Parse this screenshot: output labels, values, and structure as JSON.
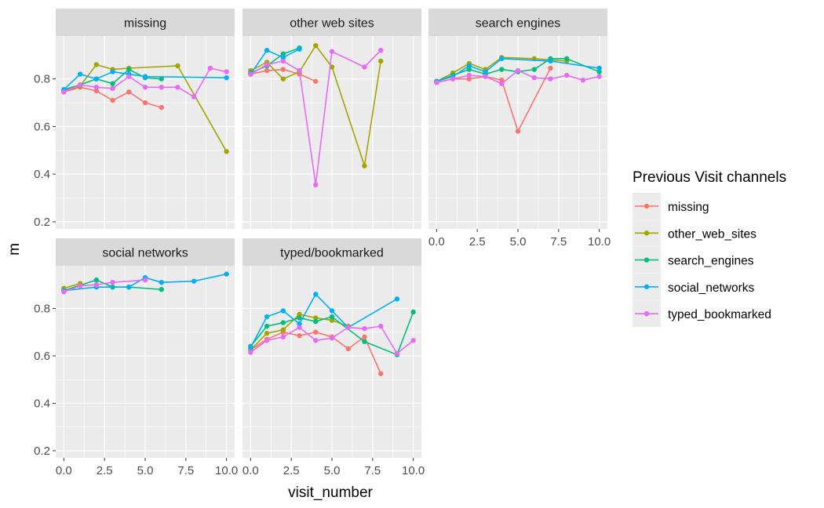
{
  "chart_data": {
    "type": "line",
    "xlabel": "visit_number",
    "ylabel": "m",
    "xlim": [
      -0.5,
      10.5
    ],
    "ylim": [
      0.17,
      0.98
    ],
    "x_ticks": [
      0,
      2.5,
      5,
      7.5,
      10
    ],
    "x_tick_labels": [
      "0.0",
      "2.5",
      "5.0",
      "7.5",
      "10.0"
    ],
    "y_ticks": [
      0.2,
      0.4,
      0.6,
      0.8
    ],
    "y_tick_labels": [
      "0.2",
      "0.4",
      "0.6",
      "0.8"
    ],
    "grid": true,
    "legend": {
      "title": "Previous Visit channels",
      "position": "right",
      "entries": [
        {
          "label": "missing",
          "color": "#F8766D"
        },
        {
          "label": "other_web_sites",
          "color": "#A3A500"
        },
        {
          "label": "search_engines",
          "color": "#00BF7D"
        },
        {
          "label": "social_networks",
          "color": "#00B0F6"
        },
        {
          "label": "typed_bookmarked",
          "color": "#E76BF3"
        }
      ]
    },
    "panels": [
      {
        "title": "missing",
        "series": [
          {
            "name": "missing",
            "x": [
              0,
              1,
              2,
              3,
              4,
              5,
              6
            ],
            "y": [
              0.745,
              0.765,
              0.75,
              0.71,
              0.745,
              0.7,
              0.68
            ]
          },
          {
            "name": "other_web_sites",
            "x": [
              0,
              1,
              2,
              3,
              4,
              7,
              10
            ],
            "y": [
              0.75,
              0.77,
              0.86,
              0.84,
              0.845,
              0.855,
              0.495
            ]
          },
          {
            "name": "search_engines",
            "x": [
              0,
              1,
              2,
              3,
              4,
              5,
              6
            ],
            "y": [
              0.755,
              0.775,
              0.8,
              0.78,
              0.84,
              0.805,
              0.8
            ]
          },
          {
            "name": "social_networks",
            "x": [
              0,
              1,
              2,
              3,
              4,
              5,
              10
            ],
            "y": [
              0.755,
              0.82,
              0.8,
              0.83,
              0.82,
              0.81,
              0.805
            ]
          },
          {
            "name": "typed_bookmarked",
            "x": [
              0,
              1,
              2,
              3,
              4,
              5,
              6,
              7,
              8,
              9,
              10
            ],
            "y": [
              0.745,
              0.775,
              0.765,
              0.76,
              0.81,
              0.765,
              0.765,
              0.765,
              0.725,
              0.845,
              0.83
            ]
          }
        ]
      },
      {
        "title": "other web sites",
        "series": [
          {
            "name": "missing",
            "x": [
              0,
              1,
              2,
              3,
              4
            ],
            "y": [
              0.82,
              0.835,
              0.84,
              0.82,
              0.79
            ]
          },
          {
            "name": "other_web_sites",
            "x": [
              0,
              1,
              2,
              3,
              4,
              5,
              7,
              8
            ],
            "y": [
              0.835,
              0.87,
              0.8,
              0.83,
              0.94,
              0.85,
              0.435,
              0.875
            ]
          },
          {
            "name": "search_engines",
            "x": [
              0,
              1,
              2,
              3
            ],
            "y": [
              0.825,
              0.855,
              0.905,
              0.93
            ]
          },
          {
            "name": "social_networks",
            "x": [
              0,
              1,
              2,
              3
            ],
            "y": [
              0.82,
              0.92,
              0.89,
              0.925
            ]
          },
          {
            "name": "typed_bookmarked",
            "x": [
              0,
              1,
              2,
              3,
              4,
              5,
              7,
              8
            ],
            "y": [
              0.82,
              0.86,
              0.875,
              0.835,
              0.355,
              0.915,
              0.85,
              0.92
            ]
          }
        ]
      },
      {
        "title": "search engines",
        "series": [
          {
            "name": "missing",
            "x": [
              0,
              1,
              2,
              3,
              4,
              5,
              7
            ],
            "y": [
              0.785,
              0.8,
              0.8,
              0.81,
              0.795,
              0.58,
              0.845
            ]
          },
          {
            "name": "other_web_sites",
            "x": [
              0,
              1,
              2,
              3,
              4,
              6,
              8
            ],
            "y": [
              0.79,
              0.825,
              0.865,
              0.84,
              0.89,
              0.885,
              0.875
            ]
          },
          {
            "name": "search_engines",
            "x": [
              0,
              1,
              2,
              3,
              4,
              5,
              6,
              7,
              8,
              10
            ],
            "y": [
              0.79,
              0.815,
              0.84,
              0.82,
              0.84,
              0.83,
              0.84,
              0.885,
              0.885,
              0.83
            ]
          },
          {
            "name": "social_networks",
            "x": [
              0,
              1,
              2,
              3,
              4,
              7,
              10
            ],
            "y": [
              0.79,
              0.81,
              0.855,
              0.83,
              0.885,
              0.875,
              0.845
            ]
          },
          {
            "name": "typed_bookmarked",
            "x": [
              0,
              1,
              2,
              3,
              4,
              5,
              6,
              7,
              8,
              9,
              10
            ],
            "y": [
              0.785,
              0.8,
              0.815,
              0.81,
              0.78,
              0.835,
              0.805,
              0.8,
              0.815,
              0.795,
              0.81
            ]
          }
        ]
      },
      {
        "title": "social networks",
        "series": [
          {
            "name": "other_web_sites",
            "x": [
              0,
              1
            ],
            "y": [
              0.885,
              0.905
            ]
          },
          {
            "name": "search_engines",
            "x": [
              0,
              2,
              3,
              4,
              6
            ],
            "y": [
              0.875,
              0.92,
              0.89,
              0.89,
              0.88
            ]
          },
          {
            "name": "social_networks",
            "x": [
              0,
              2,
              4,
              5,
              6,
              8,
              10
            ],
            "y": [
              0.875,
              0.89,
              0.89,
              0.93,
              0.91,
              0.915,
              0.945
            ]
          },
          {
            "name": "typed_bookmarked",
            "x": [
              0,
              1,
              2,
              3,
              5
            ],
            "y": [
              0.87,
              0.895,
              0.9,
              0.91,
              0.92
            ]
          }
        ]
      },
      {
        "title": "typed/bookmarked",
        "series": [
          {
            "name": "missing",
            "x": [
              0,
              1,
              2,
              3,
              4,
              5,
              6,
              7,
              8
            ],
            "y": [
              0.625,
              0.67,
              0.7,
              0.685,
              0.7,
              0.68,
              0.63,
              0.68,
              0.525
            ]
          },
          {
            "name": "other_web_sites",
            "x": [
              0,
              1,
              2,
              3,
              4,
              5,
              6
            ],
            "y": [
              0.625,
              0.695,
              0.71,
              0.775,
              0.76,
              0.75,
              0.725
            ]
          },
          {
            "name": "search_engines",
            "x": [
              0,
              1,
              2,
              3,
              4,
              5,
              7,
              9,
              10
            ],
            "y": [
              0.64,
              0.725,
              0.74,
              0.76,
              0.745,
              0.765,
              0.66,
              0.605,
              0.785
            ]
          },
          {
            "name": "social_networks",
            "x": [
              0,
              1,
              2,
              3,
              4,
              5,
              6,
              9
            ],
            "y": [
              0.635,
              0.765,
              0.79,
              0.735,
              0.86,
              0.79,
              0.72,
              0.84
            ]
          },
          {
            "name": "typed_bookmarked",
            "x": [
              0,
              1,
              2,
              3,
              4,
              5,
              6,
              7,
              8,
              9,
              10
            ],
            "y": [
              0.615,
              0.665,
              0.68,
              0.72,
              0.665,
              0.675,
              0.72,
              0.715,
              0.725,
              0.61,
              0.665
            ]
          }
        ]
      }
    ]
  }
}
